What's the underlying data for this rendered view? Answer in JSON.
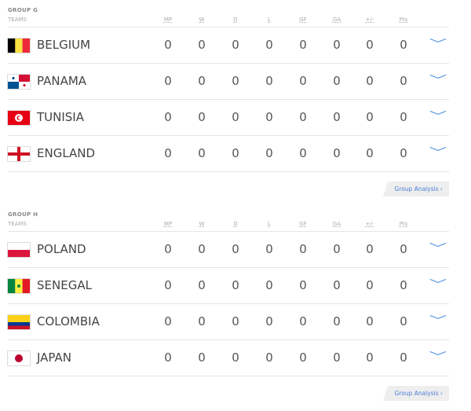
{
  "columns": {
    "teams": "TEAMS",
    "mp": "MP",
    "w": "W",
    "d": "D",
    "l": "L",
    "gf": "GF",
    "ga": "GA",
    "diff": "+/-",
    "pts": "Pts"
  },
  "groups": [
    {
      "title": "GROUP G",
      "analysis_label": "Group Analysis ›",
      "teams": [
        {
          "name": "BELGIUM",
          "flag": "belgium",
          "stats": [
            "0",
            "0",
            "0",
            "0",
            "0",
            "0",
            "0",
            "0"
          ]
        },
        {
          "name": "PANAMA",
          "flag": "panama",
          "stats": [
            "0",
            "0",
            "0",
            "0",
            "0",
            "0",
            "0",
            "0"
          ]
        },
        {
          "name": "TUNISIA",
          "flag": "tunisia",
          "stats": [
            "0",
            "0",
            "0",
            "0",
            "0",
            "0",
            "0",
            "0"
          ]
        },
        {
          "name": "ENGLAND",
          "flag": "england",
          "stats": [
            "0",
            "0",
            "0",
            "0",
            "0",
            "0",
            "0",
            "0"
          ]
        }
      ]
    },
    {
      "title": "GROUP H",
      "analysis_label": "Group Analysis ›",
      "teams": [
        {
          "name": "POLAND",
          "flag": "poland",
          "stats": [
            "0",
            "0",
            "0",
            "0",
            "0",
            "0",
            "0",
            "0"
          ]
        },
        {
          "name": "SENEGAL",
          "flag": "senegal",
          "stats": [
            "0",
            "0",
            "0",
            "0",
            "0",
            "0",
            "0",
            "0"
          ]
        },
        {
          "name": "COLOMBIA",
          "flag": "colombia",
          "stats": [
            "0",
            "0",
            "0",
            "0",
            "0",
            "0",
            "0",
            "0"
          ]
        },
        {
          "name": "JAPAN",
          "flag": "japan",
          "stats": [
            "0",
            "0",
            "0",
            "0",
            "0",
            "0",
            "0",
            "0"
          ]
        }
      ]
    }
  ],
  "colors": {
    "accent": "#4a90e2",
    "divider": "#e5e5e5"
  }
}
